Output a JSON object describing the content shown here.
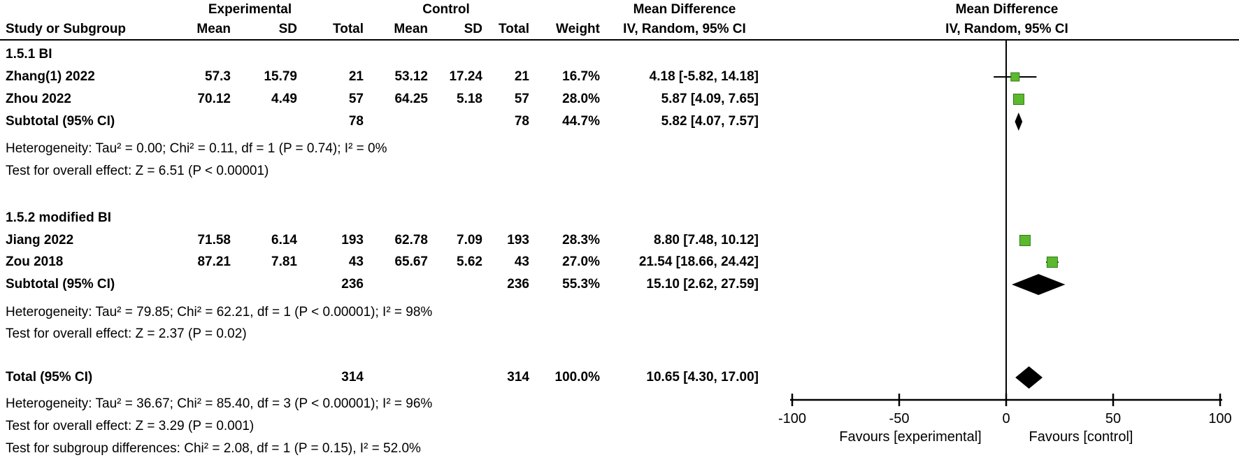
{
  "table": {
    "group_headers": {
      "experimental": "Experimental",
      "control": "Control",
      "mean_difference": "Mean Difference"
    },
    "col_headers": {
      "study": "Study or Subgroup",
      "mean": "Mean",
      "sd": "SD",
      "total": "Total",
      "weight": "Weight",
      "ci": "IV, Random, 95% CI"
    },
    "groups": [
      {
        "title": "1.5.1 BI",
        "studies": [
          {
            "study": "Zhang(1) 2022",
            "mean_e": "57.3",
            "sd_e": "15.79",
            "total_e": "21",
            "mean_c": "53.12",
            "sd_c": "17.24",
            "total_c": "21",
            "weight": "16.7%",
            "ci": "4.18 [-5.82, 14.18]"
          },
          {
            "study": "Zhou 2022",
            "mean_e": "70.12",
            "sd_e": "4.49",
            "total_e": "57",
            "mean_c": "64.25",
            "sd_c": "5.18",
            "total_c": "57",
            "weight": "28.0%",
            "ci": "5.87 [4.09, 7.65]"
          }
        ],
        "subtotal": {
          "label": "Subtotal (95% CI)",
          "total_e": "78",
          "total_c": "78",
          "weight": "44.7%",
          "ci": "5.82 [4.07, 7.57]"
        },
        "heterogeneity": "Heterogeneity: Tau² = 0.00; Chi² = 0.11, df = 1 (P = 0.74); I² = 0%",
        "overall_effect": "Test for overall effect: Z = 6.51 (P < 0.00001)"
      },
      {
        "title": "1.5.2 modified BI",
        "studies": [
          {
            "study": "Jiang 2022",
            "mean_e": "71.58",
            "sd_e": "6.14",
            "total_e": "193",
            "mean_c": "62.78",
            "sd_c": "7.09",
            "total_c": "193",
            "weight": "28.3%",
            "ci": "8.80 [7.48, 10.12]"
          },
          {
            "study": "Zou 2018",
            "mean_e": "87.21",
            "sd_e": "7.81",
            "total_e": "43",
            "mean_c": "65.67",
            "sd_c": "5.62",
            "total_c": "43",
            "weight": "27.0%",
            "ci": "21.54 [18.66, 24.42]"
          }
        ],
        "subtotal": {
          "label": "Subtotal (95% CI)",
          "total_e": "236",
          "total_c": "236",
          "weight": "55.3%",
          "ci": "15.10 [2.62, 27.59]"
        },
        "heterogeneity": "Heterogeneity: Tau² = 79.85; Chi² = 62.21, df = 1 (P < 0.00001); I² = 98%",
        "overall_effect": "Test for overall effect: Z = 2.37 (P = 0.02)"
      }
    ],
    "total": {
      "label": "Total (95% CI)",
      "total_e": "314",
      "total_c": "314",
      "weight": "100.0%",
      "ci": "10.65 [4.30, 17.00]"
    },
    "total_heterogeneity": "Heterogeneity: Tau² = 36.67; Chi² = 85.40, df = 3 (P < 0.00001); I² = 96%",
    "total_overall_effect": "Test for overall effect: Z = 3.29 (P = 0.001)",
    "subgroup_differences": "Test for subgroup differences: Chi² = 2.08, df = 1 (P = 0.15), I² = 52.0%"
  },
  "chart_data": {
    "type": "forest",
    "effect_measure": "Mean Difference, IV, Random, 95% CI",
    "marker_color": "#5cb82e",
    "diamond_color": "#000000",
    "x_axis": {
      "min": -100,
      "max": 100,
      "ticks": [
        -100,
        -50,
        0,
        50,
        100
      ],
      "label_left": "Favours [experimental]",
      "label_right": "Favours [control]"
    },
    "points": [
      {
        "label": "Zhang(1) 2022",
        "kind": "study",
        "mean": 4.18,
        "ci_lo": -5.82,
        "ci_hi": 14.18,
        "weight_pct": 16.7
      },
      {
        "label": "Zhou 2022",
        "kind": "study",
        "mean": 5.87,
        "ci_lo": 4.09,
        "ci_hi": 7.65,
        "weight_pct": 28.0
      },
      {
        "label": "Subtotal 1.5.1 BI",
        "kind": "diamond",
        "mean": 5.82,
        "ci_lo": 4.07,
        "ci_hi": 7.57
      },
      {
        "label": "Jiang 2022",
        "kind": "study",
        "mean": 8.8,
        "ci_lo": 7.48,
        "ci_hi": 10.12,
        "weight_pct": 28.3
      },
      {
        "label": "Zou 2018",
        "kind": "study",
        "mean": 21.54,
        "ci_lo": 18.66,
        "ci_hi": 24.42,
        "weight_pct": 27.0
      },
      {
        "label": "Subtotal 1.5.2 modified BI",
        "kind": "diamond",
        "mean": 15.1,
        "ci_lo": 2.62,
        "ci_hi": 27.59
      },
      {
        "label": "Total",
        "kind": "diamond",
        "mean": 10.65,
        "ci_lo": 4.3,
        "ci_hi": 17.0
      }
    ]
  }
}
